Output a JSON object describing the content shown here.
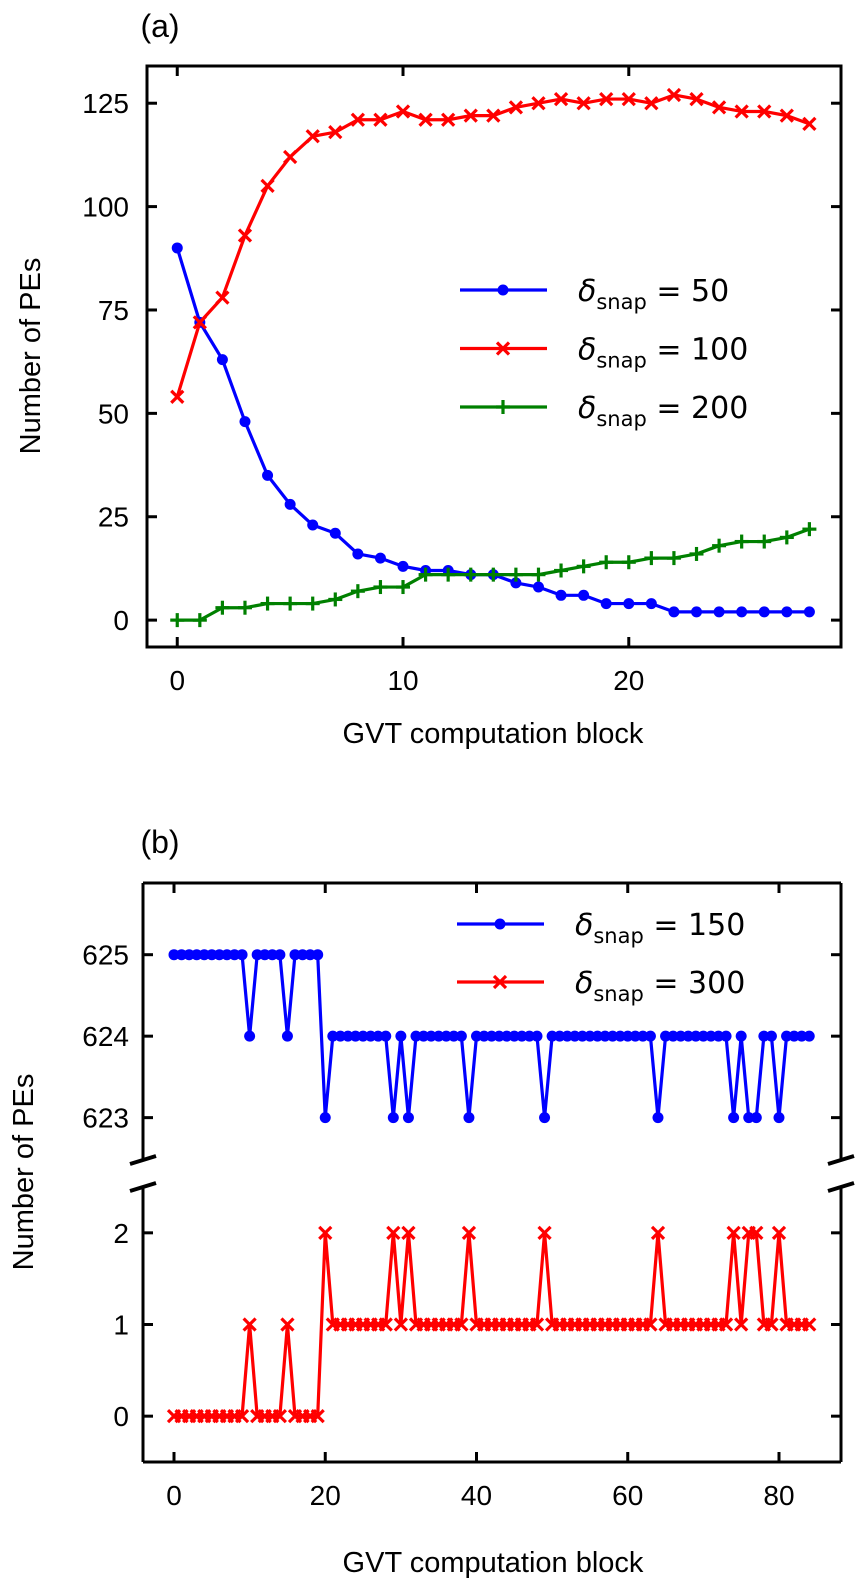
{
  "chart_data": [
    {
      "type": "line",
      "panel_label": "(a)",
      "xlabel": "GVT computation block",
      "ylabel": "Number of PEs",
      "xlim": [
        -1.34,
        29.4
      ],
      "ylim": [
        -6.5,
        134
      ],
      "xticks": [
        0,
        10,
        20
      ],
      "yticks": [
        0,
        25,
        50,
        75,
        100,
        125
      ],
      "grid": false,
      "legend_position": "center-right",
      "x": [
        0,
        1,
        2,
        3,
        4,
        5,
        6,
        7,
        8,
        9,
        10,
        11,
        12,
        13,
        14,
        15,
        16,
        17,
        18,
        19,
        20,
        21,
        22,
        23,
        24,
        25,
        26,
        27,
        28
      ],
      "series": [
        {
          "name_symbol": "δ",
          "name_sub": "snap",
          "name_value": "= 50",
          "color": "#0000ff",
          "marker": "circle",
          "values": [
            90,
            72,
            63,
            48,
            35,
            28,
            23,
            21,
            16,
            15,
            13,
            12,
            12,
            11,
            11,
            9,
            8,
            6,
            6,
            4,
            4,
            4,
            2,
            2,
            2,
            2,
            2,
            2,
            2
          ]
        },
        {
          "name_symbol": "δ",
          "name_sub": "snap",
          "name_value": "= 100",
          "color": "#ff0000",
          "marker": "x",
          "values": [
            54,
            72,
            78,
            93,
            105,
            112,
            117,
            118,
            121,
            121,
            123,
            121,
            121,
            122,
            122,
            124,
            125,
            126,
            125,
            126,
            126,
            125,
            127,
            126,
            124,
            123,
            123,
            122,
            120
          ]
        },
        {
          "name_symbol": "δ",
          "name_sub": "snap",
          "name_value": "= 200",
          "color": "#008000",
          "marker": "plus",
          "values": [
            0,
            0,
            3,
            3,
            4,
            4,
            4,
            5,
            7,
            8,
            8,
            11,
            11,
            11,
            11,
            11,
            11,
            12,
            13,
            14,
            14,
            15,
            15,
            16,
            18,
            19,
            19,
            20,
            22
          ]
        }
      ]
    },
    {
      "type": "line",
      "panel_label": "(b)",
      "xlabel": "GVT computation block",
      "ylabel": "Number of PEs",
      "broken_y_axis": true,
      "xlim": [
        -4.1,
        88.2
      ],
      "ylim_upper": [
        622.48,
        625.88
      ],
      "ylim_lower": [
        -0.5,
        2.5
      ],
      "xticks": [
        0,
        20,
        40,
        60,
        80
      ],
      "yticks_upper": [
        623,
        624,
        625
      ],
      "yticks_lower": [
        0,
        1,
        2
      ],
      "grid": false,
      "legend_position": "top-right",
      "x_range": [
        0,
        84
      ],
      "series": [
        {
          "name_symbol": "δ",
          "name_sub": "snap",
          "name_value": "= 150",
          "color": "#0000ff",
          "marker": "circle",
          "axis": "upper",
          "values": [
            625,
            625,
            625,
            625,
            625,
            625,
            625,
            625,
            625,
            625,
            624,
            625,
            625,
            625,
            625,
            624,
            625,
            625,
            625,
            625,
            623,
            624,
            624,
            624,
            624,
            624,
            624,
            624,
            624,
            623,
            624,
            623,
            624,
            624,
            624,
            624,
            624,
            624,
            624,
            623,
            624,
            624,
            624,
            624,
            624,
            624,
            624,
            624,
            624,
            623,
            624,
            624,
            624,
            624,
            624,
            624,
            624,
            624,
            624,
            624,
            624,
            624,
            624,
            624,
            623,
            624,
            624,
            624,
            624,
            624,
            624,
            624,
            624,
            624,
            623,
            624,
            623,
            623,
            624,
            624,
            623,
            624,
            624,
            624,
            624
          ]
        },
        {
          "name_symbol": "δ",
          "name_sub": "snap",
          "name_value": "= 300",
          "color": "#ff0000",
          "marker": "x",
          "axis": "lower",
          "values": [
            0,
            0,
            0,
            0,
            0,
            0,
            0,
            0,
            0,
            0,
            1,
            0,
            0,
            0,
            0,
            1,
            0,
            0,
            0,
            0,
            2,
            1,
            1,
            1,
            1,
            1,
            1,
            1,
            1,
            2,
            1,
            2,
            1,
            1,
            1,
            1,
            1,
            1,
            1,
            2,
            1,
            1,
            1,
            1,
            1,
            1,
            1,
            1,
            1,
            2,
            1,
            1,
            1,
            1,
            1,
            1,
            1,
            1,
            1,
            1,
            1,
            1,
            1,
            1,
            2,
            1,
            1,
            1,
            1,
            1,
            1,
            1,
            1,
            1,
            2,
            1,
            2,
            2,
            1,
            1,
            2,
            1,
            1,
            1,
            1
          ]
        }
      ]
    }
  ]
}
